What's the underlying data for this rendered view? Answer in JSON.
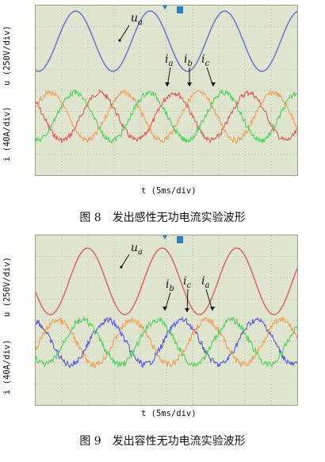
{
  "figures": [
    {
      "caption_num": "图 8",
      "caption_text": "发出感性无功电流实验波形",
      "y_label_voltage": "u (250V/div)",
      "y_label_current": "i (40A/div)",
      "x_label": "t (5ms/div)",
      "voltage_label": {
        "base": "u",
        "sub": "a"
      },
      "current_labels": [
        {
          "base": "i",
          "sub": "a"
        },
        {
          "base": "i",
          "sub": "b"
        },
        {
          "base": "i",
          "sub": "c"
        }
      ],
      "colors": {
        "voltage": "#6f7ad6",
        "ia": "#e05a5a",
        "ib": "#f0a05a",
        "ic": "#4fd35a"
      }
    },
    {
      "caption_num": "图 9",
      "caption_text": "发出容性无功电流实验波形",
      "y_label_voltage": "u (250V/div)",
      "y_label_current": "i (40A/div)",
      "x_label": "t (5ms/div)",
      "voltage_label": {
        "base": "u",
        "sub": "a"
      },
      "current_labels": [
        {
          "base": "i",
          "sub": "b"
        },
        {
          "base": "i",
          "sub": "c"
        },
        {
          "base": "i",
          "sub": "a"
        }
      ],
      "colors": {
        "voltage": "#e06a6a",
        "ia": "#5a5ad8",
        "ib": "#f0a05a",
        "ic": "#4fd35a"
      }
    }
  ]
}
